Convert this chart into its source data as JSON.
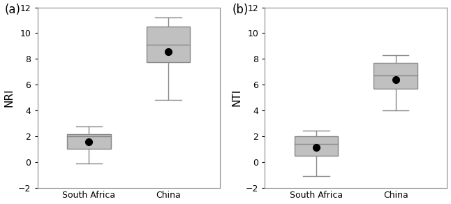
{
  "panel_a": {
    "label": "NRI",
    "panel_tag": "(a)",
    "categories": [
      "South Africa",
      "China"
    ],
    "boxes": [
      {
        "whisker_low": -0.1,
        "q1": 1.0,
        "median": 2.0,
        "q3": 2.15,
        "whisker_high": 2.75,
        "mean": 1.55
      },
      {
        "whisker_low": 4.8,
        "q1": 7.75,
        "median": 9.1,
        "q3": 10.5,
        "whisker_high": 11.2,
        "mean": 8.55
      }
    ]
  },
  "panel_b": {
    "label": "NTI",
    "panel_tag": "(b)",
    "categories": [
      "South Africa",
      "China"
    ],
    "boxes": [
      {
        "whisker_low": -1.1,
        "q1": 0.5,
        "median": 1.4,
        "q3": 2.0,
        "whisker_high": 2.4,
        "mean": 1.15
      },
      {
        "whisker_low": 4.0,
        "q1": 5.7,
        "median": 6.7,
        "q3": 7.7,
        "whisker_high": 8.3,
        "mean": 6.4
      }
    ]
  },
  "ylim": [
    -2,
    12
  ],
  "yticks": [
    -2,
    0,
    2,
    4,
    6,
    8,
    10,
    12
  ],
  "box_color": "#c0c0c0",
  "box_edgecolor": "#888888",
  "whisker_color": "#888888",
  "median_color": "#888888",
  "mean_color": "#000000",
  "mean_marker_size": 7,
  "box_width": 0.55,
  "linewidth": 1.0,
  "cap_linewidth": 1.0,
  "fontsize_label": 11,
  "fontsize_tick": 9,
  "fontsize_tag": 12
}
